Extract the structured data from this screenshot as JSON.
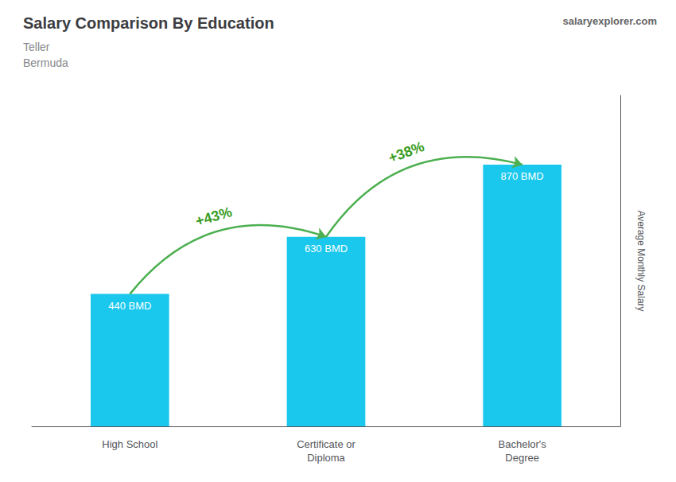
{
  "chart_data": {
    "type": "bar",
    "title": "Salary Comparison By Education",
    "subtitle": [
      "Teller",
      "Bermuda"
    ],
    "ylabel": "Average Monthly Salary",
    "categories": [
      "High School",
      "Certificate or\nDiploma",
      "Bachelor's\nDegree"
    ],
    "values": [
      440,
      630,
      870
    ],
    "value_labels": [
      "440 BMD",
      "630 BMD",
      "870 BMD"
    ],
    "data_labels": true,
    "color": "#1ac8ed",
    "ylim": [
      0,
      1100
    ],
    "grid": false,
    "tick_labels": "x",
    "annotations": [
      {
        "text": "+43%",
        "from": "High School",
        "to": "Certificate or\nDiploma"
      },
      {
        "text": "+38%",
        "from": "Certificate or\nDiploma",
        "to": "Bachelor's\nDegree"
      },
      {
        "text": "salaryexplorer.com"
      }
    ]
  }
}
